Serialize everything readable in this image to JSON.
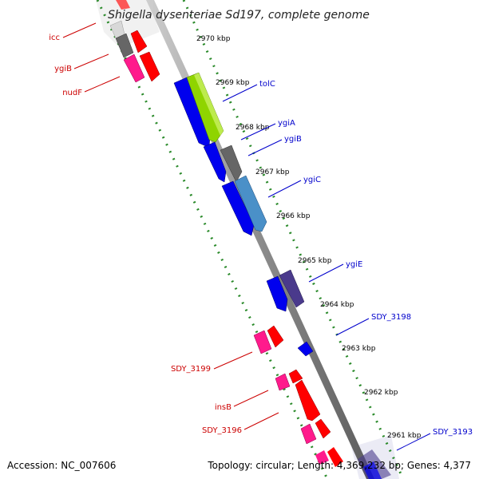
{
  "title": "Shigella dysenteriae Sd197, complete genome",
  "footer": {
    "accession": "Accession: NC_007606",
    "summary": "Topology: circular; Length: 4,369,232 bp; Genes: 4,377"
  },
  "ticks": [
    {
      "label": "2970 kbp"
    },
    {
      "label": "2969 kbp"
    },
    {
      "label": "2968 kbp"
    },
    {
      "label": "2967 kbp"
    },
    {
      "label": "2966 kbp"
    },
    {
      "label": "2965 kbp"
    },
    {
      "label": "2964 kbp"
    },
    {
      "label": "2963 kbp"
    },
    {
      "label": "2962 kbp"
    },
    {
      "label": "2961 kbp"
    }
  ],
  "gene_labels": [
    {
      "label": "icc",
      "color": "#cc0000"
    },
    {
      "label": "ygiB",
      "color": "#cc0000"
    },
    {
      "label": "nudF",
      "color": "#cc0000"
    },
    {
      "label": "tolC",
      "color": "#0000cc"
    },
    {
      "label": "ygiA",
      "color": "#0000cc"
    },
    {
      "label": "ygiB",
      "color": "#0000cc"
    },
    {
      "label": "ygiC",
      "color": "#0000cc"
    },
    {
      "label": "ygiE",
      "color": "#0000cc"
    },
    {
      "label": "SDY_3198",
      "color": "#0000cc"
    },
    {
      "label": "SDY_3199",
      "color": "#cc0000"
    },
    {
      "label": "insB",
      "color": "#cc0000"
    },
    {
      "label": "SDY_3196",
      "color": "#cc0000"
    },
    {
      "label": "SDY_3193",
      "color": "#0000cc"
    }
  ],
  "colors": {
    "forward_cds": "#ff0000",
    "reverse_cds": "#0000ff",
    "forward_rna": "#ff1a8c",
    "reverse_rna": "#4a3a8c",
    "lime": "#8fd400",
    "steel": "#4a90c8",
    "gray_gene": "#666666",
    "backbone": "#888888",
    "dotted_track": "#2a8a2a"
  }
}
